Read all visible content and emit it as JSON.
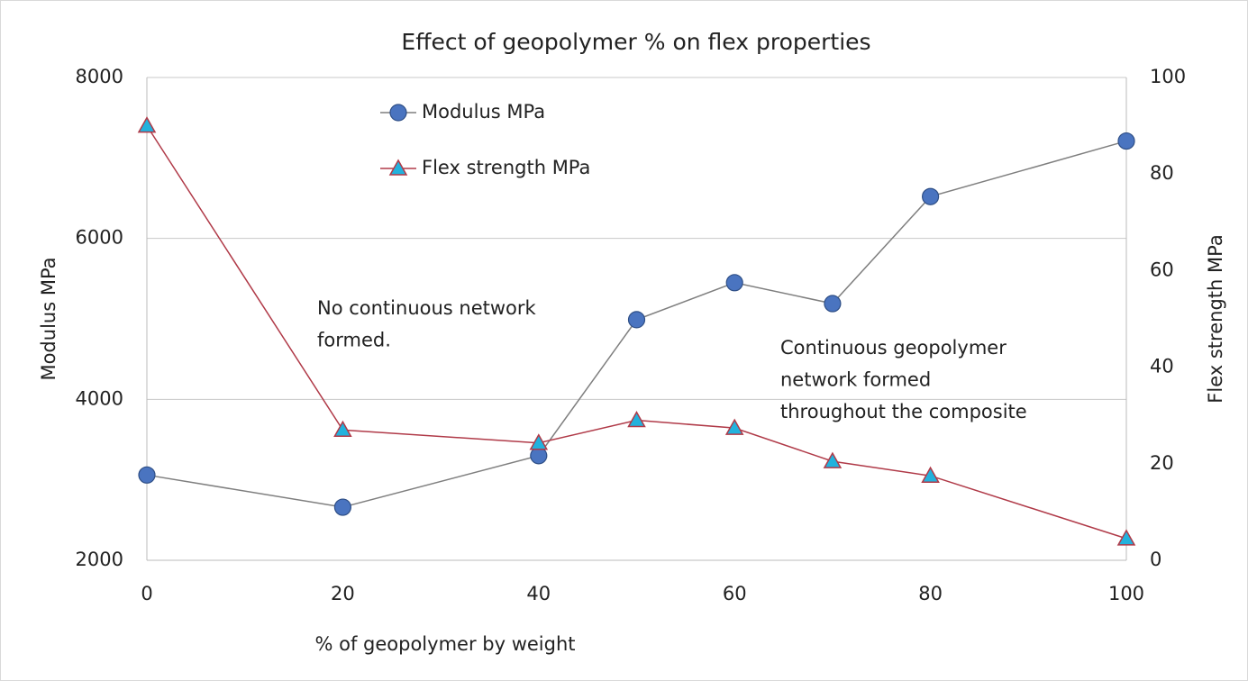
{
  "chart_data": {
    "type": "line",
    "title": "Effect of geopolymer % on flex properties",
    "x_label": "% of geopolymer by weight",
    "y_label": "Modulus MPa",
    "y2_label": "Flex strength MPa",
    "x": [
      0,
      20,
      40,
      50,
      60,
      70,
      80,
      100
    ],
    "xlim": [
      0,
      100
    ],
    "xticks": [
      0,
      20,
      40,
      60,
      80,
      100
    ],
    "ylim": [
      2000,
      8000
    ],
    "yticks": [
      2000,
      4000,
      6000,
      8000
    ],
    "y2lim": [
      0,
      100
    ],
    "y2ticks": [
      0,
      20,
      40,
      60,
      80,
      100
    ],
    "grid": true,
    "series": [
      {
        "name": "Modulus MPa",
        "color": "#4a74c0",
        "line_color": "#7f7f7f",
        "marker": "circle",
        "values": [
          3060,
          2660,
          3300,
          4990,
          5450,
          5190,
          6520,
          7210
        ]
      },
      {
        "name": "Flex strength MPa",
        "color": "#22b2dd",
        "line_color": "#b03a48",
        "marker": "triangle",
        "axis": "y2",
        "values": [
          90,
          27,
          24.3,
          29,
          27.4,
          20.5,
          17.5,
          4.5
        ]
      }
    ],
    "annotations": [
      {
        "lines": [
          "No continuous network",
          "formed."
        ]
      },
      {
        "lines": [
          "Continuous geopolymer",
          "network formed",
          "throughout the composite"
        ]
      }
    ]
  }
}
